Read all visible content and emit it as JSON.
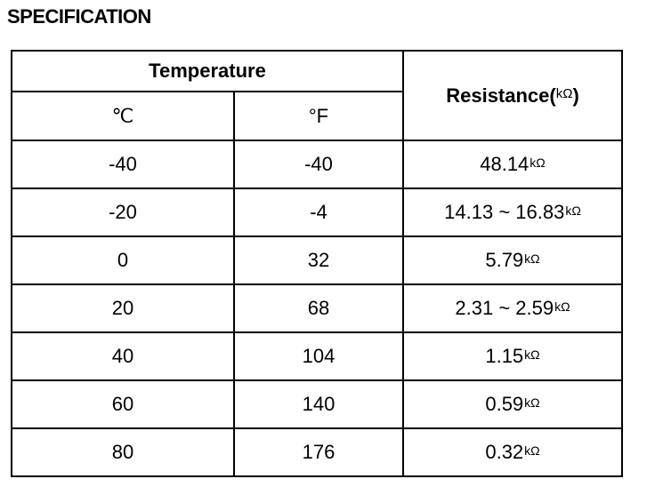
{
  "title": "SPECIFICATION",
  "header": {
    "temperature": "Temperature",
    "celsius": "℃",
    "fahrenheit": "°F",
    "resistance": "Resistance(",
    "resistance_unit": "kΩ",
    "resistance_close": ")"
  },
  "unit": "kΩ",
  "rows": [
    {
      "c": "-40",
      "f": "-40",
      "r": "48.14"
    },
    {
      "c": "-20",
      "f": "-4",
      "r": "14.13 ~ 16.83"
    },
    {
      "c": "0",
      "f": "32",
      "r": "5.79"
    },
    {
      "c": "20",
      "f": "68",
      "r": "2.31 ~ 2.59"
    },
    {
      "c": "40",
      "f": "104",
      "r": "1.15"
    },
    {
      "c": "60",
      "f": "140",
      "r": "0.59"
    },
    {
      "c": "80",
      "f": "176",
      "r": "0.32"
    }
  ]
}
